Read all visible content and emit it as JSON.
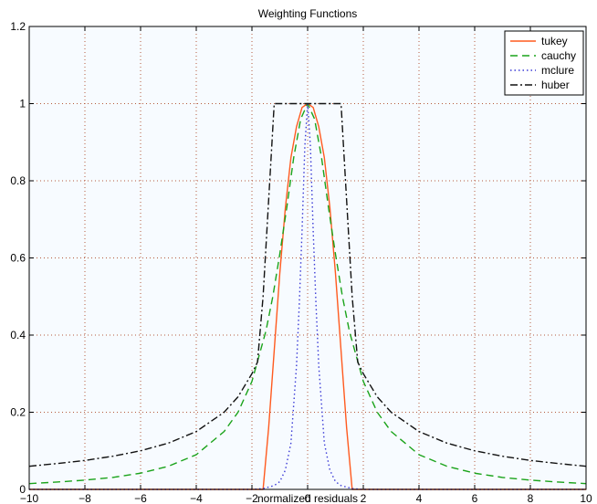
{
  "chart_data": {
    "type": "line",
    "title": "Weighting Functions",
    "xlabel": "normalized residuals",
    "ylabel": "",
    "xlim": [
      -10,
      10
    ],
    "ylim": [
      0,
      1.2
    ],
    "xticks": [
      -10,
      -8,
      -6,
      -4,
      -2,
      0,
      2,
      4,
      6,
      8,
      10
    ],
    "yticks": [
      0,
      0.2,
      0.4,
      0.6,
      0.8,
      1,
      1.2
    ],
    "xtick_labels": [
      "−10",
      "−8",
      "−6",
      "−4",
      "−2",
      "0",
      "2",
      "4",
      "6",
      "8",
      "10"
    ],
    "ytick_labels": [
      "0",
      "0.2",
      "0.4",
      "0.6",
      "0.8",
      "1",
      "1.2"
    ],
    "grid": true,
    "legend_position": "top-right",
    "series": [
      {
        "name": "tukey",
        "color": "#ff5a1f",
        "line_style": "solid",
        "x": [
          -10,
          -2,
          -1.8,
          -1.6,
          -1.4,
          -1.2,
          -1.0,
          -0.8,
          -0.6,
          -0.4,
          -0.2,
          0,
          0.2,
          0.4,
          0.6,
          0.8,
          1.0,
          1.2,
          1.4,
          1.6,
          1.8,
          2,
          10
        ],
        "y": [
          0,
          0,
          0.0,
          0.0,
          0.16,
          0.36,
          0.56,
          0.73,
          0.86,
          0.94,
          0.99,
          1.0,
          0.99,
          0.94,
          0.86,
          0.73,
          0.56,
          0.36,
          0.16,
          0.0,
          0.0,
          0,
          0
        ]
      },
      {
        "name": "cauchy",
        "color": "#1aa31a",
        "line_style": "dashed",
        "x": [
          -10,
          -9,
          -8,
          -7,
          -6,
          -5,
          -4,
          -3,
          -2.5,
          -2,
          -1.5,
          -1.25,
          -1,
          -0.75,
          -0.5,
          -0.25,
          0,
          0.25,
          0.5,
          0.75,
          1,
          1.25,
          1.5,
          2,
          2.5,
          3,
          4,
          5,
          6,
          7,
          8,
          9,
          10
        ],
        "y": [
          0.015,
          0.019,
          0.024,
          0.031,
          0.042,
          0.06,
          0.09,
          0.15,
          0.2,
          0.28,
          0.41,
          0.5,
          0.61,
          0.73,
          0.86,
          0.96,
          1.0,
          0.96,
          0.86,
          0.73,
          0.61,
          0.5,
          0.41,
          0.28,
          0.2,
          0.15,
          0.09,
          0.06,
          0.042,
          0.031,
          0.024,
          0.019,
          0.015
        ]
      },
      {
        "name": "mclure",
        "color": "#3b3bd6",
        "line_style": "dotted",
        "x": [
          -10,
          -2,
          -1.6,
          -1.2,
          -1.0,
          -0.8,
          -0.6,
          -0.4,
          -0.3,
          -0.2,
          -0.1,
          0,
          0.1,
          0.2,
          0.3,
          0.4,
          0.6,
          0.8,
          1.0,
          1.2,
          1.6,
          2,
          10
        ],
        "y": [
          0,
          0,
          0.002,
          0.01,
          0.02,
          0.05,
          0.12,
          0.32,
          0.48,
          0.67,
          0.89,
          1.0,
          0.89,
          0.67,
          0.48,
          0.32,
          0.12,
          0.05,
          0.02,
          0.01,
          0.002,
          0,
          0
        ]
      },
      {
        "name": "huber",
        "color": "#111111",
        "line_style": "dashdot",
        "x": [
          -10,
          -9,
          -8,
          -7,
          -6,
          -5,
          -4,
          -3,
          -2.5,
          -2,
          -1.8,
          -1.6,
          -1.4,
          -1.2,
          1.2,
          1.4,
          1.6,
          1.8,
          2,
          2.5,
          3,
          4,
          5,
          6,
          7,
          8,
          9,
          10
        ],
        "y": [
          0.06,
          0.067,
          0.075,
          0.086,
          0.1,
          0.12,
          0.15,
          0.2,
          0.24,
          0.3,
          0.33,
          0.5,
          0.75,
          1.0,
          1.0,
          0.75,
          0.5,
          0.33,
          0.3,
          0.24,
          0.2,
          0.15,
          0.12,
          0.1,
          0.086,
          0.075,
          0.067,
          0.06
        ]
      }
    ]
  },
  "colors": {
    "plot_background": "#f7fbff",
    "grid": "#b45a3c",
    "axis": "#000000"
  }
}
